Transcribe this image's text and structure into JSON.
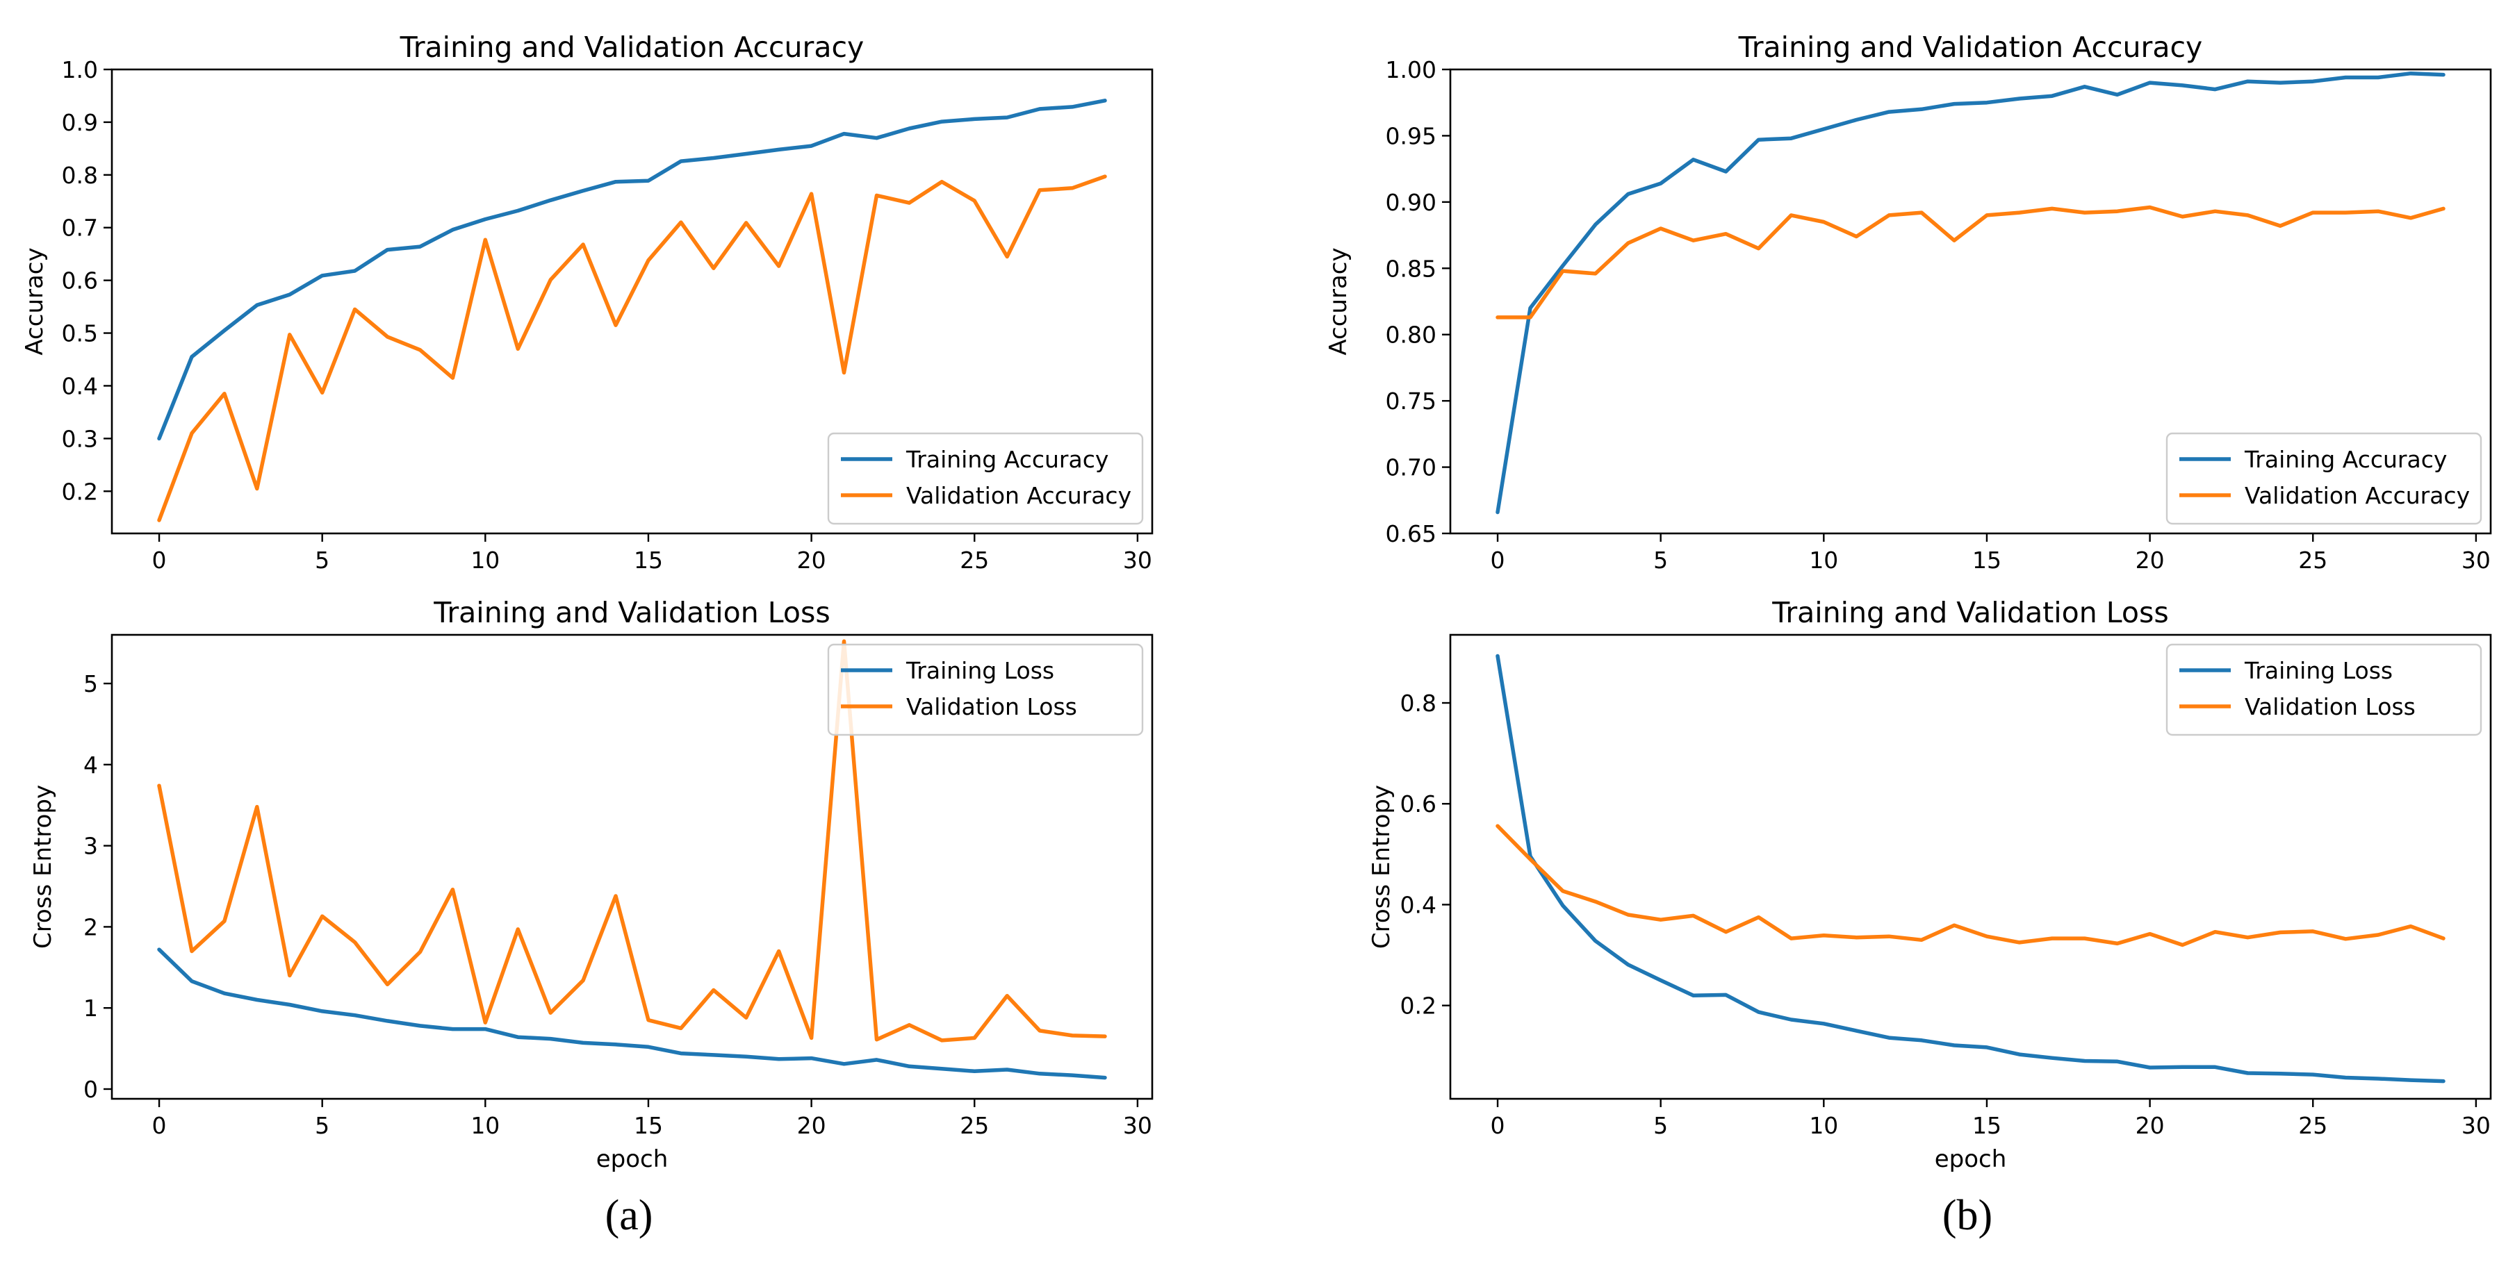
{
  "panel_labels": {
    "a": "(a)",
    "b": "(b)"
  },
  "colors": {
    "training": "#1f77b4",
    "validation": "#ff7f0e",
    "axis": "#000000"
  },
  "chart_data": [
    {
      "type": "line",
      "panel": "a",
      "title": "Training and Validation Accuracy",
      "xlabel": "",
      "ylabel": "Accuracy",
      "xlim": [
        -1.45,
        30.45
      ],
      "ylim": [
        0.12,
        1.0
      ],
      "xticks": [
        0,
        5,
        10,
        15,
        20,
        25,
        30
      ],
      "xtick_labels": [
        "0",
        "5",
        "10",
        "15",
        "20",
        "25",
        "30"
      ],
      "yticks": [
        0.2,
        0.3,
        0.4,
        0.5,
        0.6,
        0.7,
        0.8,
        0.9,
        1.0
      ],
      "ytick_labels": [
        "0.2",
        "0.3",
        "0.4",
        "0.5",
        "0.6",
        "0.7",
        "0.8",
        "0.9",
        "1.0"
      ],
      "legend": "lower-right",
      "x": [
        0,
        1,
        2,
        3,
        4,
        5,
        6,
        7,
        8,
        9,
        10,
        11,
        12,
        13,
        14,
        15,
        16,
        17,
        18,
        19,
        20,
        21,
        22,
        23,
        24,
        25,
        26,
        27,
        28,
        29
      ],
      "series": [
        {
          "name": "Training Accuracy",
          "color": "#1f77b4",
          "values": [
            0.3,
            0.455,
            0.505,
            0.553,
            0.573,
            0.609,
            0.618,
            0.658,
            0.664,
            0.696,
            0.716,
            0.732,
            0.752,
            0.77,
            0.787,
            0.789,
            0.826,
            0.832,
            0.84,
            0.848,
            0.855,
            0.878,
            0.87,
            0.888,
            0.901,
            0.906,
            0.909,
            0.925,
            0.929,
            0.941
          ]
        },
        {
          "name": "Validation Accuracy",
          "color": "#ff7f0e",
          "values": [
            0.145,
            0.31,
            0.385,
            0.205,
            0.497,
            0.387,
            0.545,
            0.493,
            0.468,
            0.415,
            0.677,
            0.47,
            0.601,
            0.668,
            0.515,
            0.638,
            0.71,
            0.623,
            0.709,
            0.627,
            0.764,
            0.425,
            0.761,
            0.747,
            0.787,
            0.751,
            0.645,
            0.771,
            0.775,
            0.797
          ]
        }
      ]
    },
    {
      "type": "line",
      "panel": "a",
      "title": "Training and Validation Loss",
      "xlabel": "epoch",
      "ylabel": "Cross Entropy",
      "xlim": [
        -1.45,
        30.45
      ],
      "ylim": [
        -0.12,
        5.6
      ],
      "xticks": [
        0,
        5,
        10,
        15,
        20,
        25,
        30
      ],
      "xtick_labels": [
        "0",
        "5",
        "10",
        "15",
        "20",
        "25",
        "30"
      ],
      "yticks": [
        0,
        1,
        2,
        3,
        4,
        5
      ],
      "ytick_labels": [
        "0",
        "1",
        "2",
        "3",
        "4",
        "5"
      ],
      "legend": "upper-right",
      "x": [
        0,
        1,
        2,
        3,
        4,
        5,
        6,
        7,
        8,
        9,
        10,
        11,
        12,
        13,
        14,
        15,
        16,
        17,
        18,
        19,
        20,
        21,
        22,
        23,
        24,
        25,
        26,
        27,
        28,
        29
      ],
      "series": [
        {
          "name": "Training Loss",
          "color": "#1f77b4",
          "values": [
            1.72,
            1.33,
            1.18,
            1.1,
            1.04,
            0.96,
            0.91,
            0.84,
            0.78,
            0.74,
            0.74,
            0.64,
            0.62,
            0.57,
            0.55,
            0.52,
            0.44,
            0.42,
            0.4,
            0.37,
            0.38,
            0.31,
            0.36,
            0.28,
            0.25,
            0.22,
            0.24,
            0.19,
            0.17,
            0.14
          ]
        },
        {
          "name": "Validation Loss",
          "color": "#ff7f0e",
          "values": [
            3.74,
            1.7,
            2.07,
            3.48,
            1.4,
            2.13,
            1.81,
            1.29,
            1.69,
            2.46,
            0.82,
            1.97,
            0.94,
            1.34,
            2.38,
            0.85,
            0.75,
            1.22,
            0.88,
            1.7,
            0.63,
            5.52,
            0.61,
            0.79,
            0.6,
            0.63,
            1.15,
            0.72,
            0.66,
            0.65
          ]
        }
      ]
    },
    {
      "type": "line",
      "panel": "b",
      "title": "Training and Validation Accuracy",
      "xlabel": "",
      "ylabel": "Accuracy",
      "xlim": [
        -1.45,
        30.45
      ],
      "ylim": [
        0.65,
        1.0
      ],
      "xticks": [
        0,
        5,
        10,
        15,
        20,
        25,
        30
      ],
      "xtick_labels": [
        "0",
        "5",
        "10",
        "15",
        "20",
        "25",
        "30"
      ],
      "yticks": [
        0.65,
        0.7,
        0.75,
        0.8,
        0.85,
        0.9,
        0.95,
        1.0
      ],
      "ytick_labels": [
        "0.65",
        "0.70",
        "0.75",
        "0.80",
        "0.85",
        "0.90",
        "0.95",
        "1.00"
      ],
      "legend": "lower-right",
      "x": [
        0,
        1,
        2,
        3,
        4,
        5,
        6,
        7,
        8,
        9,
        10,
        11,
        12,
        13,
        14,
        15,
        16,
        17,
        18,
        19,
        20,
        21,
        22,
        23,
        24,
        25,
        26,
        27,
        28,
        29
      ],
      "series": [
        {
          "name": "Training Accuracy",
          "color": "#1f77b4",
          "values": [
            0.666,
            0.82,
            0.852,
            0.883,
            0.906,
            0.914,
            0.932,
            0.923,
            0.947,
            0.948,
            0.955,
            0.962,
            0.968,
            0.97,
            0.974,
            0.975,
            0.978,
            0.98,
            0.987,
            0.981,
            0.99,
            0.988,
            0.985,
            0.991,
            0.99,
            0.991,
            0.994,
            0.994,
            0.997,
            0.996
          ]
        },
        {
          "name": "Validation Accuracy",
          "color": "#ff7f0e",
          "values": [
            0.813,
            0.813,
            0.848,
            0.846,
            0.869,
            0.88,
            0.871,
            0.876,
            0.865,
            0.89,
            0.885,
            0.874,
            0.89,
            0.892,
            0.871,
            0.89,
            0.892,
            0.895,
            0.892,
            0.893,
            0.896,
            0.889,
            0.893,
            0.89,
            0.882,
            0.892,
            0.892,
            0.893,
            0.888,
            0.895
          ]
        }
      ]
    },
    {
      "type": "line",
      "panel": "b",
      "title": "Training and Validation Loss",
      "xlabel": "epoch",
      "ylabel": "Cross Entropy",
      "xlim": [
        -1.45,
        30.45
      ],
      "ylim": [
        0.015,
        0.935
      ],
      "xticks": [
        0,
        5,
        10,
        15,
        20,
        25,
        30
      ],
      "xtick_labels": [
        "0",
        "5",
        "10",
        "15",
        "20",
        "25",
        "30"
      ],
      "yticks": [
        0.2,
        0.4,
        0.6,
        0.8
      ],
      "ytick_labels": [
        "0.2",
        "0.4",
        "0.6",
        "0.8"
      ],
      "legend": "upper-right",
      "x": [
        0,
        1,
        2,
        3,
        4,
        5,
        6,
        7,
        8,
        9,
        10,
        11,
        12,
        13,
        14,
        15,
        16,
        17,
        18,
        19,
        20,
        21,
        22,
        23,
        24,
        25,
        26,
        27,
        28,
        29
      ],
      "series": [
        {
          "name": "Training Loss",
          "color": "#1f77b4",
          "values": [
            0.893,
            0.496,
            0.398,
            0.328,
            0.281,
            0.25,
            0.22,
            0.221,
            0.187,
            0.172,
            0.164,
            0.15,
            0.136,
            0.131,
            0.121,
            0.117,
            0.103,
            0.096,
            0.09,
            0.089,
            0.077,
            0.078,
            0.078,
            0.066,
            0.065,
            0.063,
            0.057,
            0.055,
            0.052,
            0.05
          ]
        },
        {
          "name": "Validation Loss",
          "color": "#ff7f0e",
          "values": [
            0.556,
            0.49,
            0.427,
            0.406,
            0.38,
            0.37,
            0.378,
            0.346,
            0.375,
            0.333,
            0.339,
            0.335,
            0.337,
            0.33,
            0.359,
            0.337,
            0.325,
            0.333,
            0.333,
            0.323,
            0.342,
            0.32,
            0.346,
            0.335,
            0.345,
            0.347,
            0.332,
            0.34,
            0.357,
            0.333
          ]
        }
      ]
    }
  ]
}
